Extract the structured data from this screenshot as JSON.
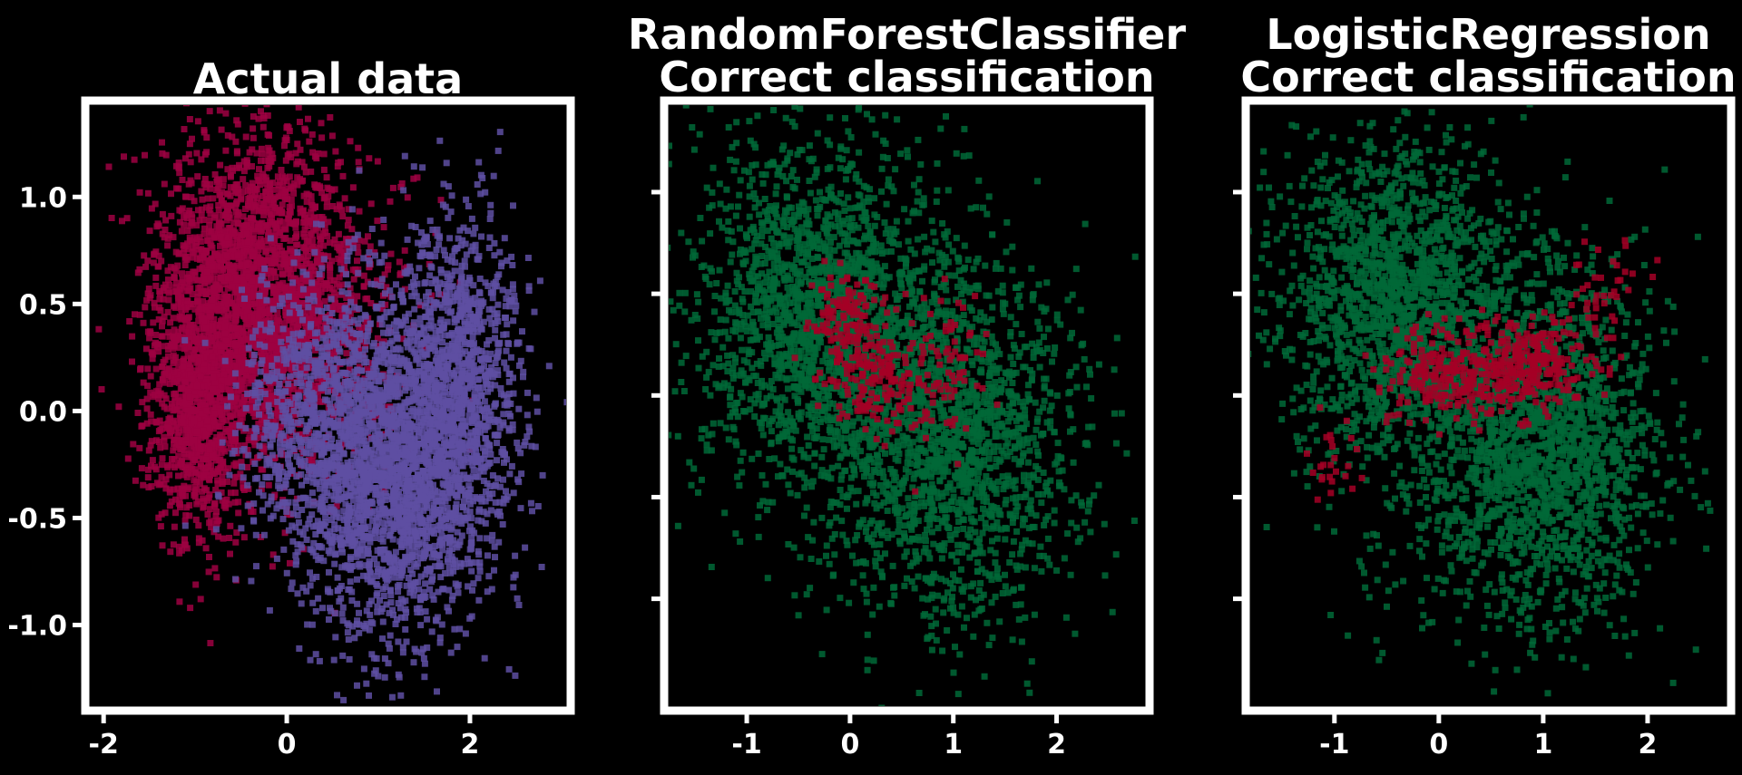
{
  "chart_data": [
    {
      "type": "scatter",
      "title_lines": [
        "Actual data"
      ],
      "xticks": [
        -2,
        0,
        2
      ],
      "xtick_labels": [
        "-2",
        "0",
        "2"
      ],
      "yticks": [
        1.0,
        0.5,
        0.0,
        -0.5,
        -1.0
      ],
      "ytick_labels": [
        "1.0",
        "0.5",
        "0.0",
        "-0.5",
        "-1.0"
      ],
      "xlim": [
        -2.2,
        3.1
      ],
      "ylim": [
        -1.4,
        1.45
      ],
      "grid": false,
      "series": [
        {
          "color": "#9e0142",
          "clusters": [
            {
              "cx": -0.3,
              "cy": 0.55,
              "sx": 0.55,
              "sy": 0.38,
              "n": 2300
            },
            {
              "cx": -0.95,
              "cy": 0.05,
              "sx": 0.28,
              "sy": 0.33,
              "n": 1000
            },
            {
              "cx": 0.5,
              "cy": 0.3,
              "sx": 0.55,
              "sy": 0.32,
              "n": 300
            }
          ]
        },
        {
          "color": "#5e4fa2",
          "clusters": [
            {
              "cx": 1.15,
              "cy": -0.25,
              "sx": 0.55,
              "sy": 0.42,
              "n": 2300
            },
            {
              "cx": 1.9,
              "cy": 0.15,
              "sx": 0.32,
              "sy": 0.38,
              "n": 900
            },
            {
              "cx": 0.2,
              "cy": -0.05,
              "sx": 0.42,
              "sy": 0.32,
              "n": 500
            }
          ]
        }
      ]
    },
    {
      "type": "scatter",
      "title_lines": [
        "RandomForestClassifier",
        "Correct classification"
      ],
      "xticks": [
        -1,
        0,
        1,
        2
      ],
      "xtick_labels": [
        "-1",
        "0",
        "1",
        "2"
      ],
      "yticks": [
        1.0,
        0.5,
        0.0,
        -0.5,
        -1.0
      ],
      "ytick_labels": [
        "",
        "",
        "",
        "",
        ""
      ],
      "xlim": [
        -1.8,
        2.9
      ],
      "ylim": [
        -1.55,
        1.45
      ],
      "grid": false,
      "series": [
        {
          "color": "#006837",
          "clusters": [
            {
              "cx": -0.4,
              "cy": 0.45,
              "sx": 0.55,
              "sy": 0.42,
              "n": 1400
            },
            {
              "cx": 1.0,
              "cy": -0.25,
              "sx": 0.6,
              "sy": 0.42,
              "n": 1400
            },
            {
              "cx": 0.3,
              "cy": 0.1,
              "sx": 0.7,
              "sy": 0.5,
              "n": 700
            }
          ]
        },
        {
          "color": "#a50026",
          "clusters": [
            {
              "cx": -0.05,
              "cy": 0.35,
              "sx": 0.18,
              "sy": 0.14,
              "n": 140
            },
            {
              "cx": 0.3,
              "cy": 0.05,
              "sx": 0.2,
              "sy": 0.14,
              "n": 140
            },
            {
              "cx": 0.9,
              "cy": 0.15,
              "sx": 0.22,
              "sy": 0.18,
              "n": 80
            }
          ]
        }
      ]
    },
    {
      "type": "scatter",
      "title_lines": [
        "LogisticRegression",
        "Correct classification"
      ],
      "xticks": [
        -1,
        0,
        1,
        2
      ],
      "xtick_labels": [
        "-1",
        "0",
        "1",
        "2"
      ],
      "yticks": [
        1.0,
        0.5,
        0.0,
        -0.5,
        -1.0
      ],
      "ytick_labels": [
        "",
        "",
        "",
        "",
        ""
      ],
      "xlim": [
        -1.85,
        2.8
      ],
      "ylim": [
        -1.55,
        1.45
      ],
      "grid": false,
      "series": [
        {
          "color": "#006837",
          "clusters": [
            {
              "cx": -0.45,
              "cy": 0.5,
              "sx": 0.55,
              "sy": 0.4,
              "n": 1400
            },
            {
              "cx": 1.05,
              "cy": -0.3,
              "sx": 0.55,
              "sy": 0.42,
              "n": 1400
            },
            {
              "cx": 0.3,
              "cy": 0.05,
              "sx": 0.75,
              "sy": 0.55,
              "n": 700
            }
          ]
        },
        {
          "color": "#a50026",
          "clusters": [
            {
              "cx": 0.1,
              "cy": 0.1,
              "sx": 0.3,
              "sy": 0.12,
              "n": 250
            },
            {
              "cx": 0.9,
              "cy": 0.15,
              "sx": 0.25,
              "sy": 0.12,
              "n": 250
            },
            {
              "cx": 1.55,
              "cy": 0.5,
              "sx": 0.2,
              "sy": 0.12,
              "n": 40
            },
            {
              "cx": -1.0,
              "cy": -0.3,
              "sx": 0.15,
              "sy": 0.1,
              "n": 25
            }
          ]
        }
      ]
    }
  ]
}
